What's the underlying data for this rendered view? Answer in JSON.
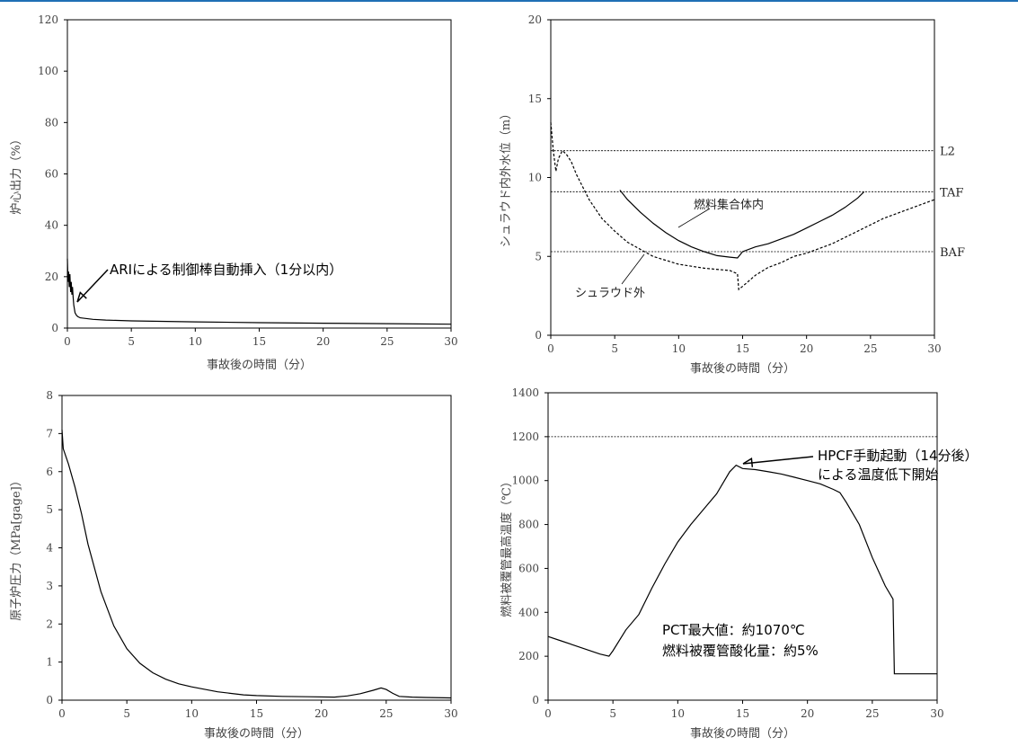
{
  "colors": {
    "accent_bar": "#1f6fb5",
    "line": "#000000",
    "axis_text": "#444444"
  },
  "chart_data": [
    {
      "type": "line",
      "id": "core-power",
      "ylabel": "炉心出力（%）",
      "xlabel": "事故後の時間（分）",
      "xlim": [
        0,
        30
      ],
      "ylim": [
        0,
        120
      ],
      "xticks": [
        0,
        5,
        10,
        15,
        20,
        25,
        30
      ],
      "yticks": [
        0,
        20,
        40,
        60,
        80,
        100,
        120
      ],
      "grid": false,
      "series": [
        {
          "x": [
            0,
            0.05,
            0.1,
            0.15,
            0.2,
            0.25,
            0.3,
            0.35,
            0.4,
            0.45,
            0.5,
            0.6,
            0.7,
            0.8,
            1,
            2,
            3,
            5,
            10,
            15,
            20,
            25,
            30
          ],
          "y": [
            27,
            18,
            22,
            16,
            21,
            14,
            18,
            13,
            16,
            12,
            9,
            6,
            5,
            4.5,
            4,
            3.4,
            3.1,
            2.8,
            2.4,
            2.1,
            1.9,
            1.7,
            1.5
          ]
        }
      ],
      "annotations": [
        {
          "text": "ARIによる制御棒自動挿入（1分以内）",
          "arrow_to": [
            0.6,
            9
          ]
        }
      ]
    },
    {
      "type": "line",
      "id": "water-level",
      "ylabel": "シュラウド内外水位（m）",
      "xlabel": "事故後の時間（分）",
      "xlim": [
        0,
        30
      ],
      "ylim": [
        0,
        20
      ],
      "xticks": [
        0,
        5,
        10,
        15,
        20,
        25,
        30
      ],
      "yticks": [
        0,
        5,
        10,
        15,
        20
      ],
      "grid": false,
      "reference_lines": [
        {
          "label": "L2",
          "y": 11.7
        },
        {
          "label": "TAF",
          "y": 9.1
        },
        {
          "label": "BAF",
          "y": 5.3
        }
      ],
      "series": [
        {
          "name": "燃料集合体内",
          "style": "solid",
          "x": [
            5.4,
            6,
            7,
            8,
            9,
            10,
            11,
            12,
            13,
            14,
            14.6,
            15,
            16,
            17,
            18,
            19,
            20,
            21,
            22,
            23,
            24,
            24.5
          ],
          "y": [
            9.2,
            8.6,
            7.8,
            7.1,
            6.5,
            6.0,
            5.6,
            5.3,
            5.05,
            4.95,
            4.9,
            5.3,
            5.6,
            5.8,
            6.1,
            6.4,
            6.8,
            7.2,
            7.6,
            8.1,
            8.7,
            9.1
          ]
        },
        {
          "name": "シュラウド外",
          "style": "dashed",
          "x": [
            0,
            0.2,
            0.4,
            0.6,
            0.9,
            1.2,
            1.6,
            2,
            3,
            4,
            5,
            6,
            8,
            10,
            12,
            14,
            14.6,
            14.7,
            15,
            16,
            17,
            18,
            19,
            20,
            22,
            24,
            26,
            28,
            30
          ],
          "y": [
            13.5,
            11.7,
            10.4,
            11.2,
            11.7,
            11.5,
            11,
            10.2,
            8.6,
            7.4,
            6.6,
            5.9,
            5.0,
            4.5,
            4.25,
            4.1,
            3.9,
            2.9,
            3.1,
            3.8,
            4.3,
            4.6,
            5.0,
            5.2,
            5.8,
            6.6,
            7.4,
            8.0,
            8.6
          ]
        }
      ],
      "labels": [
        "燃料集合体内",
        "シュラウド外"
      ]
    },
    {
      "type": "line",
      "id": "reactor-pressure",
      "ylabel": "原子炉圧力（MPa[gage]）",
      "xlabel": "事故後の時間（分）",
      "xlim": [
        0,
        30
      ],
      "ylim": [
        0,
        8
      ],
      "xticks": [
        0,
        5,
        10,
        15,
        20,
        25,
        30
      ],
      "yticks": [
        0,
        1,
        2,
        3,
        4,
        5,
        6,
        7,
        8
      ],
      "grid": false,
      "series": [
        {
          "x": [
            0,
            0.1,
            0.3,
            0.5,
            1,
            1.5,
            2,
            3,
            4,
            5,
            6,
            7,
            8,
            9,
            10,
            12,
            14,
            15,
            17,
            19,
            21,
            22,
            23,
            24,
            24.6,
            25,
            25.5,
            26,
            27,
            28,
            30
          ],
          "y": [
            7.1,
            6.6,
            6.4,
            6.2,
            5.6,
            4.9,
            4.1,
            2.85,
            1.95,
            1.35,
            0.97,
            0.72,
            0.55,
            0.43,
            0.35,
            0.22,
            0.14,
            0.12,
            0.1,
            0.09,
            0.08,
            0.11,
            0.17,
            0.26,
            0.32,
            0.28,
            0.18,
            0.1,
            0.08,
            0.07,
            0.06
          ]
        }
      ]
    },
    {
      "type": "line",
      "id": "cladding-temp",
      "ylabel": "燃料被覆管最高温度（℃）",
      "xlabel": "事故後の時間（分）",
      "xlim": [
        0,
        30
      ],
      "ylim": [
        0,
        1400
      ],
      "xticks": [
        0,
        5,
        10,
        15,
        20,
        25,
        30
      ],
      "yticks": [
        0,
        200,
        400,
        600,
        800,
        1000,
        1200,
        1400
      ],
      "grid": false,
      "reference_lines": [
        {
          "label": "",
          "y": 1200
        }
      ],
      "series": [
        {
          "x": [
            0,
            1,
            2,
            3,
            4,
            4.7,
            5,
            6,
            7,
            8,
            9,
            10,
            11,
            12,
            13,
            14,
            14.5,
            15,
            16,
            17,
            18,
            19,
            20,
            21,
            22,
            22.5,
            23,
            24,
            25,
            26,
            26.6,
            26.7,
            27,
            28,
            30
          ],
          "y": [
            290,
            270,
            250,
            230,
            210,
            200,
            225,
            320,
            390,
            510,
            620,
            720,
            800,
            870,
            940,
            1040,
            1070,
            1055,
            1050,
            1040,
            1030,
            1015,
            1000,
            985,
            960,
            945,
            900,
            800,
            650,
            520,
            460,
            120,
            120,
            120,
            120
          ]
        }
      ],
      "annotations": [
        {
          "lines": [
            "HPCF手動起動（14分後）",
            "による温度低下開始"
          ],
          "arrow_to": [
            14.6,
            1070
          ]
        },
        {
          "lines": [
            "PCT最大値：約1070℃",
            "燃料被覆管酸化量：約5%"
          ]
        }
      ]
    }
  ]
}
